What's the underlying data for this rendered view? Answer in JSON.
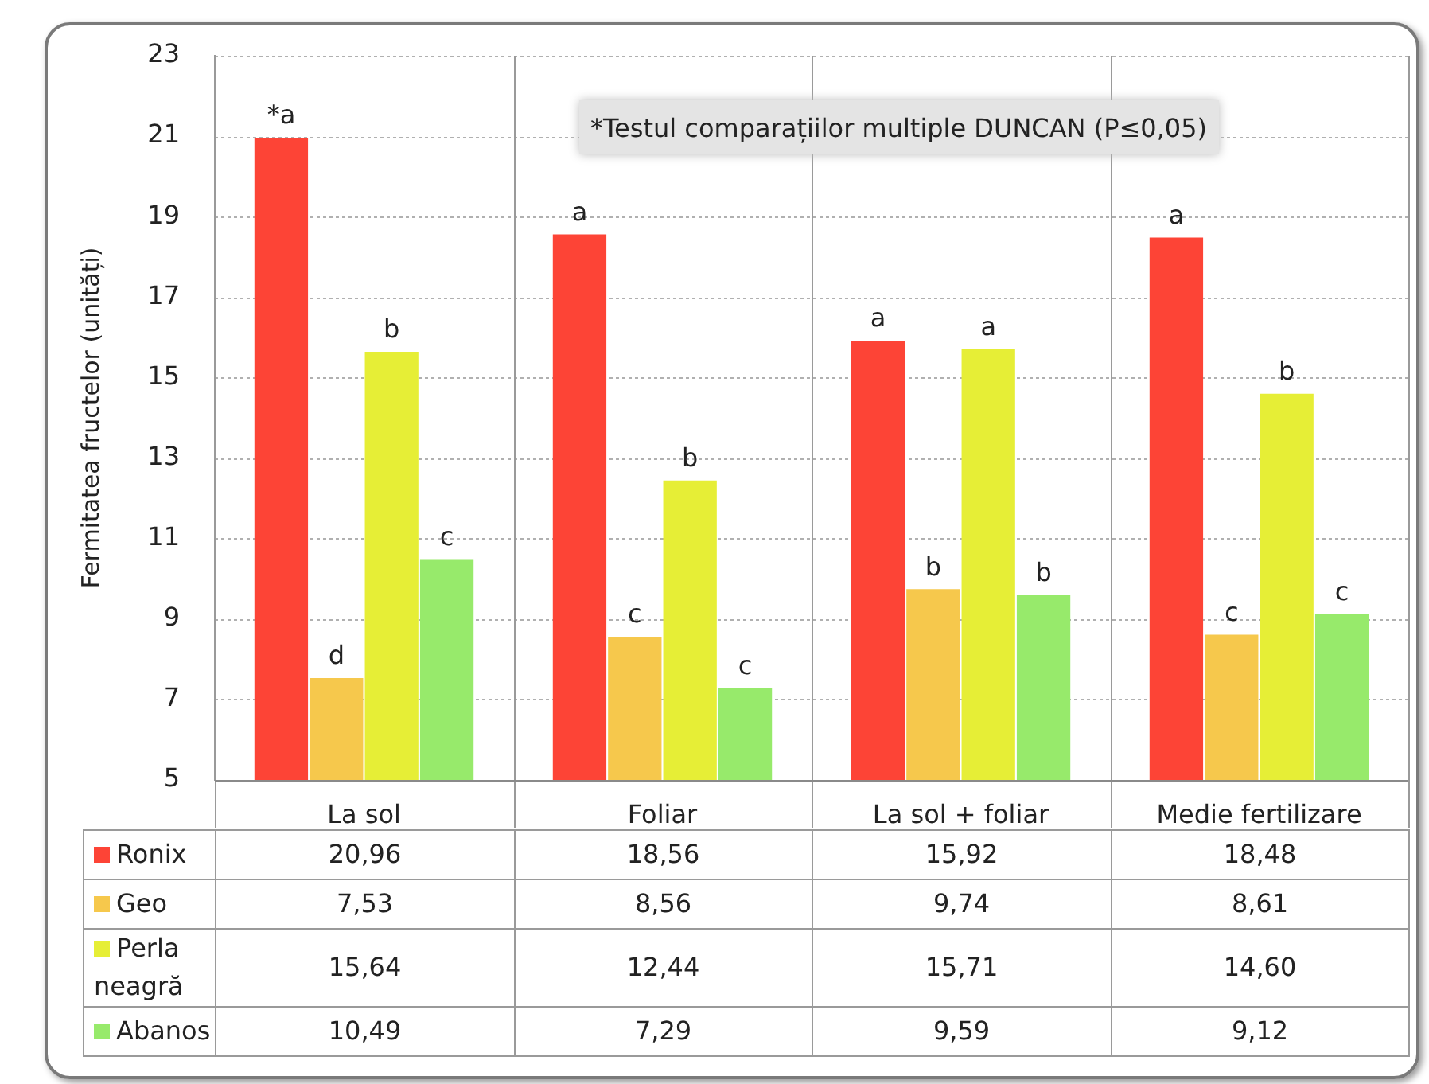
{
  "chart_data": {
    "type": "bar",
    "ylabel": "Fermitatea fructelor (unități)",
    "categories": [
      "La sol",
      "Foliar",
      "La sol + foliar",
      "Medie fertilizare"
    ],
    "series": [
      {
        "name": "Ronix",
        "color": "#fd4436",
        "values": [
          20.96,
          18.56,
          15.92,
          18.48
        ],
        "value_labels": [
          "20,96",
          "18,56",
          "15,92",
          "18,48"
        ]
      },
      {
        "name": "Geo",
        "color": "#f6c84c",
        "values": [
          7.53,
          8.56,
          9.74,
          8.61
        ],
        "value_labels": [
          "7,53",
          "8,56",
          "9,74",
          "8,61"
        ]
      },
      {
        "name": "Perla neagră",
        "color": "#e6ee36",
        "values": [
          15.64,
          12.44,
          15.71,
          14.6
        ],
        "value_labels": [
          "15,64",
          "12,44",
          "15,71",
          "14,60"
        ]
      },
      {
        "name": "Abanos",
        "color": "#97ea6b",
        "values": [
          10.49,
          7.29,
          9.59,
          9.12
        ],
        "value_labels": [
          "10,49",
          "7,29",
          "9,59",
          "9,12"
        ]
      }
    ],
    "ylim": [
      5,
      23
    ],
    "yticks": [
      5,
      7,
      9,
      11,
      13,
      15,
      17,
      19,
      21,
      23
    ],
    "grid": true,
    "legend": "bottom",
    "annotations": [
      "*Testul comparațiilor multiple DUNCAN (P≤0,05)",
      "*a",
      "d",
      "b",
      "c",
      "a",
      "c",
      "b",
      "c",
      "a",
      "b",
      "a",
      "b",
      "a",
      "c",
      "b",
      "c"
    ]
  }
}
